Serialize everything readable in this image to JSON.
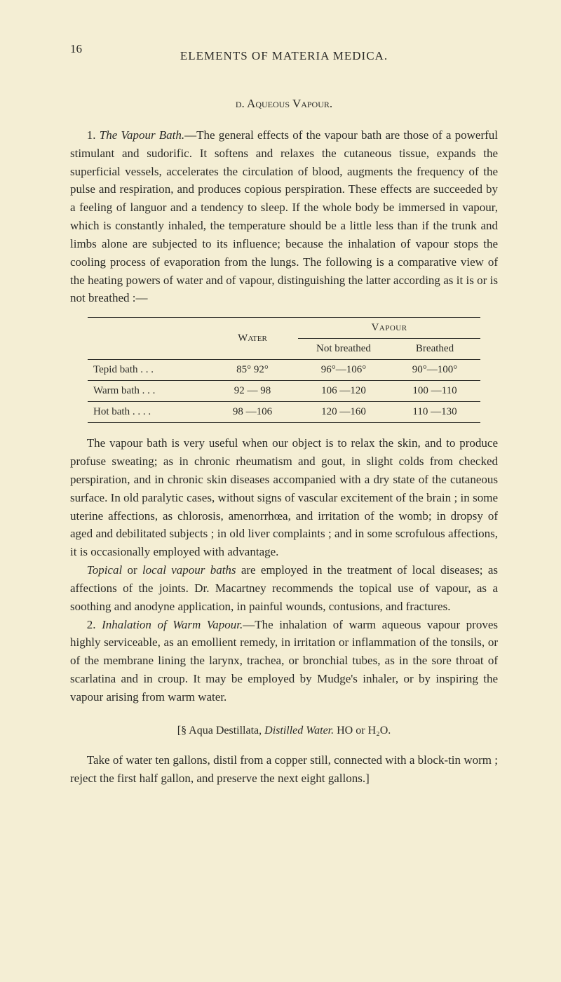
{
  "page_number": "16",
  "running_head": "ELEMENTS OF MATERIA MEDICA.",
  "section_d": "d. Aqueous Vapour.",
  "para1_lead": "1. ",
  "para1_title": "The Vapour Bath.",
  "para1_body": "—The general effects of the vapour bath are those of a powerful stimulant and sudorific. It softens and relaxes the cutaneous tissue, expands the superficial vessels, accelerates the circulation of blood, augments the frequency of the pulse and respiration, and produces copious perspiration. These effects are succeeded by a feeling of languor and a tendency to sleep. If the whole body be immersed in vapour, which is constantly inhaled, the temperature should be a little less than if the trunk and limbs alone are subjected to its influence; because the inhalation of vapour stops the cooling process of evaporation from the lungs. The following is a comparative view of the heating powers of water and of vapour, distinguishing the latter according as it is or is not breathed :—",
  "table": {
    "head_water": "Water",
    "head_vapour": "Vapour",
    "head_not_breathed": "Not breathed",
    "head_breathed": "Breathed",
    "rows": [
      {
        "label": "Tepid bath   .   .   .",
        "water": "85°    92°",
        "nb": "96°—106°",
        "br": "90°—100°"
      },
      {
        "label": "Warm bath   .   .   .",
        "water": "92 — 98",
        "nb": "106 —120",
        "br": "100 —110"
      },
      {
        "label": "Hot bath .   .   .   .",
        "water": "98 —106",
        "nb": "120 —160",
        "br": "110 —130"
      }
    ]
  },
  "para2": "The vapour bath is very useful when our object is to relax the skin, and to produce profuse sweating; as in chronic rheumatism and gout, in slight colds from checked perspiration, and in chronic skin diseases accompanied with a dry state of the cutaneous surface. In old paralytic cases, without signs of vascular excitement of the brain ; in some uterine affections, as chlorosis, amenorrhœa, and irritation of the womb; in dropsy of aged and debilitated subjects ; in old liver complaints ; and in some scrofulous affections, it is occasionally employed with advantage.",
  "para3_lead_ital": "Topical",
  "para3_mid": " or ",
  "para3_ital2": "local vapour baths",
  "para3_rest": " are employed in the treatment of local diseases; as affections of the joints. Dr. Macartney recommends the topical use of vapour, as a soothing and anodyne application, in painful wounds, contusions, and fractures.",
  "para4_lead": "2. ",
  "para4_title": "Inhalation of Warm Vapour.",
  "para4_body": "—The inhalation of warm aqueous vapour proves highly serviceable, as an emollient remedy, in irritation or inflammation of the tonsils, or of the membrane lining the larynx, trachea, or bronchial tubes, as in the sore throat of scarlatina and in croup. It may be employed by Mudge's inhaler, or by inspiring the vapour arising from warm water.",
  "sig_line_a": "[§ Aqua Destillata, ",
  "sig_line_b_ital": "Distilled Water.",
  "sig_line_c": "  HO or H₂O.",
  "para5": "Take of water ten gallons, distil from a copper still, connected with a block-tin worm ; reject the first half gallon, and preserve the next eight gallons.]"
}
